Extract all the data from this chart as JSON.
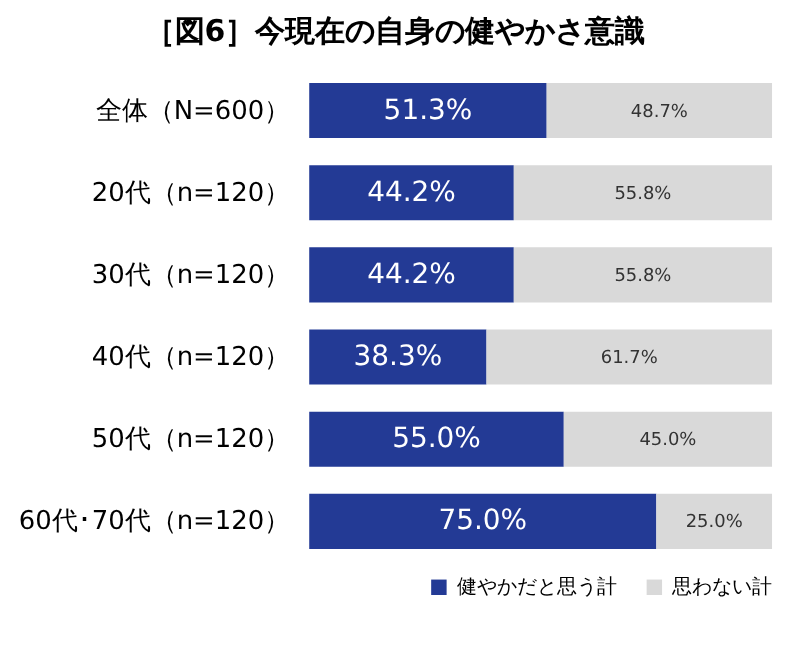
{
  "chart_data": {
    "type": "bar",
    "orientation": "horizontal",
    "stacked": true,
    "title": "［図6］今現在の自身の健やかさ意識",
    "categories": [
      "全体（N=600）",
      "20代（n=120）",
      "30代（n=120）",
      "40代（n=120）",
      "50代（n=120）",
      "60代･70代（n=120）"
    ],
    "series": [
      {
        "name": "健やかだと思う計",
        "color": "#233a95",
        "values": [
          51.3,
          44.2,
          44.2,
          38.3,
          55.0,
          75.0
        ],
        "value_labels": [
          "51.3%",
          "44.2%",
          "44.2%",
          "38.3%",
          "55.0%",
          "75.0%"
        ]
      },
      {
        "name": "思わない計",
        "color": "#d9d9d9",
        "values": [
          48.7,
          55.8,
          55.8,
          61.7,
          45.0,
          25.0
        ],
        "value_labels": [
          "48.7%",
          "55.8%",
          "55.8%",
          "61.7%",
          "45.0%",
          "25.0%"
        ]
      }
    ],
    "legend": "bottom right",
    "grid": false
  }
}
